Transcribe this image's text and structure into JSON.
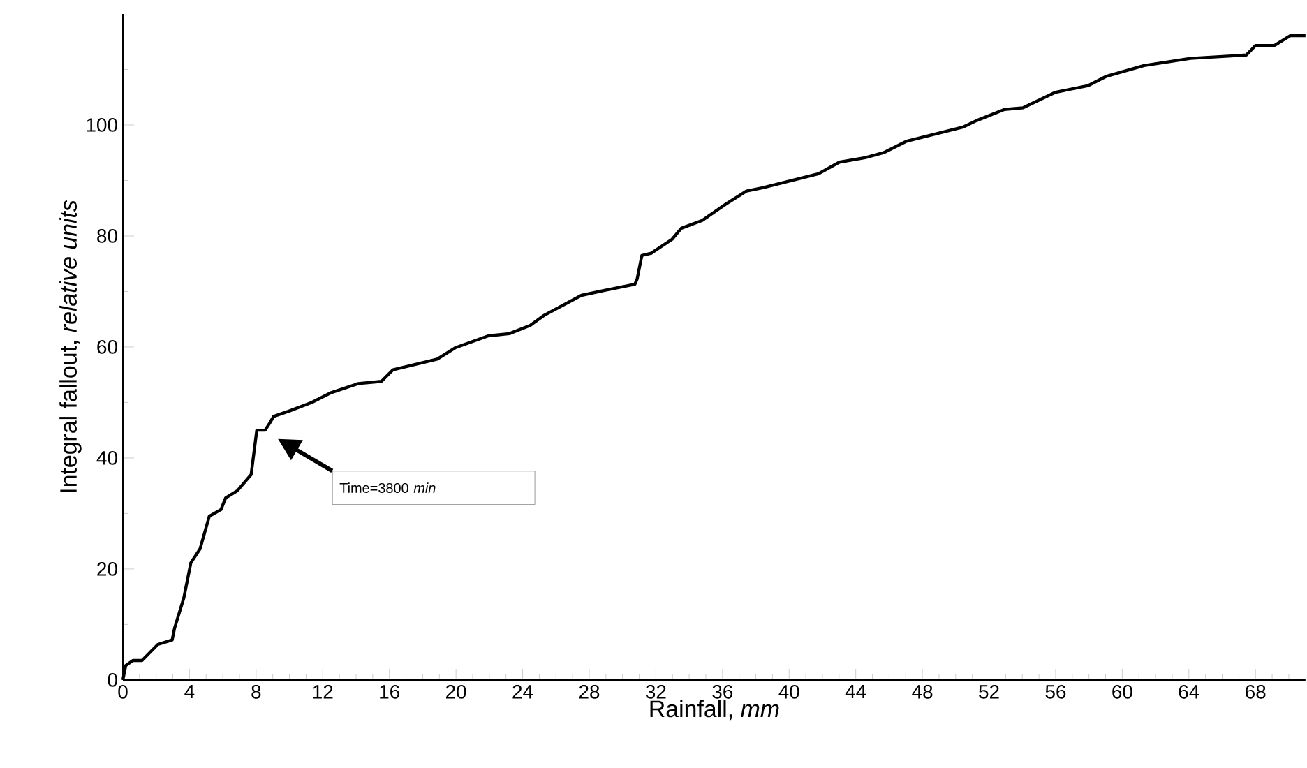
{
  "chart_data": {
    "type": "line",
    "xlabel": "Rainfall,   *mm*",
    "ylabel": "Integral fallout, *relative units*",
    "annotations": [
      "Time=3800 *min*"
    ],
    "xlim": [
      0,
      71
    ],
    "ylim": [
      0,
      120
    ],
    "xticks": [
      0,
      {
        "value": 1,
        "label": null
      },
      {
        "value": 2,
        "label": null
      },
      {
        "value": 3,
        "label": null
      },
      4,
      {
        "value": 5,
        "label": null
      },
      {
        "value": 6,
        "label": null
      },
      {
        "value": 7,
        "label": null
      },
      8,
      {
        "value": 9,
        "label": null
      },
      {
        "value": 10,
        "label": null
      },
      {
        "value": 11,
        "label": null
      },
      12,
      {
        "value": 13,
        "label": null
      },
      {
        "value": 14,
        "label": null
      },
      {
        "value": 15,
        "label": null
      },
      16,
      {
        "value": 17,
        "label": null
      },
      {
        "value": 18,
        "label": null
      },
      {
        "value": 19,
        "label": null
      },
      20,
      {
        "value": 21,
        "label": null
      },
      {
        "value": 22,
        "label": null
      },
      {
        "value": 23,
        "label": null
      },
      24,
      {
        "value": 25,
        "label": null
      },
      {
        "value": 26,
        "label": null
      },
      {
        "value": 27,
        "label": null
      },
      28,
      {
        "value": 29,
        "label": null
      },
      {
        "value": 30,
        "label": null
      },
      {
        "value": 31,
        "label": null
      },
      32,
      {
        "value": 33,
        "label": null
      },
      {
        "value": 34,
        "label": null
      },
      {
        "value": 35,
        "label": null
      },
      36,
      {
        "value": 37,
        "label": null
      },
      {
        "value": 38,
        "label": null
      },
      {
        "value": 39,
        "label": null
      },
      40,
      {
        "value": 41,
        "label": null
      },
      {
        "value": 42,
        "label": null
      },
      {
        "value": 43,
        "label": null
      },
      44,
      {
        "value": 45,
        "label": null
      },
      {
        "value": 46,
        "label": null
      },
      {
        "value": 47,
        "label": null
      },
      48,
      {
        "value": 49,
        "label": null
      },
      {
        "value": 50,
        "label": null
      },
      {
        "value": 51,
        "label": null
      },
      52,
      {
        "value": 53,
        "label": null
      },
      {
        "value": 54,
        "label": null
      },
      {
        "value": 55,
        "label": null
      },
      56,
      {
        "value": 57,
        "label": null
      },
      {
        "value": 58,
        "label": null
      },
      {
        "value": 59,
        "label": null
      },
      60,
      {
        "value": 61,
        "label": null
      },
      {
        "value": 62,
        "label": null
      },
      {
        "value": 63,
        "label": null
      },
      64,
      {
        "value": 65,
        "label": null
      },
      {
        "value": 66,
        "label": null
      },
      {
        "value": 67,
        "label": null
      },
      68,
      {
        "value": 69,
        "label": null
      },
      {
        "value": 70,
        "label": null
      }
    ],
    "yticks": [
      0,
      {
        "value": 10,
        "label": null
      },
      20,
      {
        "value": 30,
        "label": null
      },
      40,
      {
        "value": 50,
        "label": null
      },
      60,
      {
        "value": 70,
        "label": null
      },
      80,
      {
        "value": 90,
        "label": null
      },
      100,
      {
        "value": 110,
        "label": null
      }
    ],
    "grid": false,
    "marker": "none",
    "line_style": "solid",
    "series": [
      {
        "color": "#000000",
        "x": [
          0,
          0.17,
          0.6,
          1.15,
          2.1,
          2.96,
          3.1,
          3.66,
          4.08,
          4.63,
          5.19,
          5.89,
          6.17,
          6.87,
          7.7,
          8.04,
          8.54,
          8.82,
          9.05,
          9.94,
          11.33,
          12.45,
          14.13,
          15.52,
          16.22,
          17.48,
          18.87,
          19.99,
          21.94,
          23.2,
          24.46,
          25.29,
          27.53,
          28.92,
          30.74,
          30.88,
          31.16,
          31.72,
          32.97,
          33.53,
          34.78,
          36.18,
          37.44,
          38.42,
          41.76,
          43.02,
          44.56,
          45.67,
          47.07,
          50.42,
          51.26,
          52.93,
          54.05,
          56.0,
          57.96,
          59.07,
          61.31,
          64.1,
          67.45,
          68.0,
          69.12,
          70.1,
          71
        ],
        "values": [
          0,
          2.6,
          3.5,
          3.5,
          6.4,
          7.2,
          9.3,
          14.8,
          21.1,
          23.6,
          29.5,
          30.7,
          32.8,
          34.1,
          37,
          45,
          45,
          46.3,
          47.5,
          48.4,
          50,
          51.7,
          53.4,
          53.8,
          55.9,
          56.8,
          57.8,
          59.9,
          62.0,
          62.4,
          63.9,
          65.7,
          69.3,
          70.2,
          71.3,
          72.3,
          76.5,
          76.9,
          79.4,
          81.4,
          82.8,
          85.7,
          88.1,
          88.7,
          91.2,
          93.3,
          94.1,
          95,
          97.1,
          99.6,
          100.8,
          102.8,
          103.1,
          105.9,
          107.1,
          108.8,
          110.7,
          112,
          112.6,
          114.3,
          114.3,
          116.1,
          116.1
        ]
      }
    ]
  }
}
